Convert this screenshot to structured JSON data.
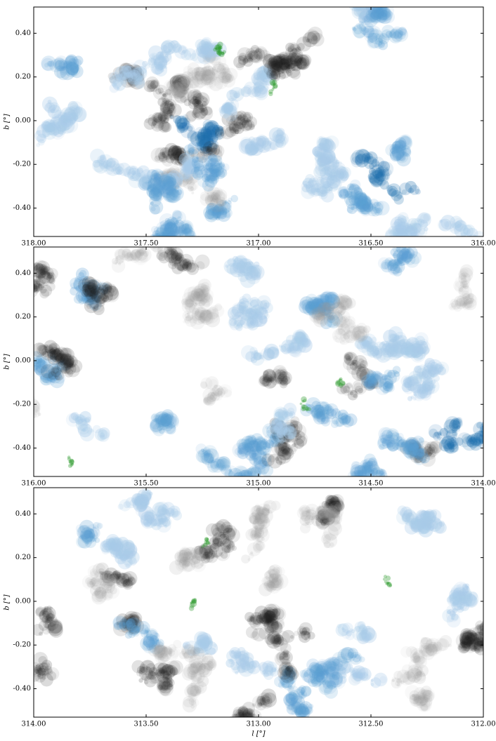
{
  "chart_data": [
    {
      "type": "map",
      "ylabel": "b [°]",
      "xlim": [
        318,
        316
      ],
      "ylim": [
        -0.53,
        0.52
      ],
      "xticks": [
        {
          "value": 318,
          "label": "318.00"
        },
        {
          "value": 317.5,
          "label": "317.50"
        },
        {
          "value": 317,
          "label": "317.00"
        },
        {
          "value": 316.5,
          "label": "316.50"
        },
        {
          "value": 316,
          "label": "316.00"
        }
      ],
      "yticks": [
        {
          "value": 0.4,
          "label": "0.40"
        },
        {
          "value": 0.2,
          "label": "0.20"
        },
        {
          "value": 0,
          "label": "0.00"
        },
        {
          "value": -0.2,
          "label": "-0.20"
        },
        {
          "value": -0.4,
          "label": "-0.40"
        }
      ]
    },
    {
      "type": "map",
      "ylabel": "b [°]",
      "xlim": [
        316,
        314
      ],
      "ylim": [
        -0.53,
        0.52
      ],
      "xticks": [
        {
          "value": 316,
          "label": "316.00"
        },
        {
          "value": 315.5,
          "label": "315.50"
        },
        {
          "value": 315,
          "label": "315.00"
        },
        {
          "value": 314.5,
          "label": "314.50"
        },
        {
          "value": 314,
          "label": "314.00"
        }
      ],
      "yticks": [
        {
          "value": 0.4,
          "label": "0.40"
        },
        {
          "value": 0.2,
          "label": "0.20"
        },
        {
          "value": 0,
          "label": "0.00"
        },
        {
          "value": -0.2,
          "label": "-0.20"
        },
        {
          "value": -0.4,
          "label": "-0.40"
        }
      ]
    },
    {
      "type": "map",
      "ylabel": "b [°]",
      "xlabel": "l [°]",
      "xlim": [
        314,
        312
      ],
      "ylim": [
        -0.53,
        0.52
      ],
      "xticks": [
        {
          "value": 314,
          "label": "314.00"
        },
        {
          "value": 313.5,
          "label": "313.50"
        },
        {
          "value": 313,
          "label": "313.00"
        },
        {
          "value": 312.5,
          "label": "312.50"
        },
        {
          "value": 312,
          "label": "312.00"
        }
      ],
      "yticks": [
        {
          "value": 0.4,
          "label": "0.40"
        },
        {
          "value": 0.2,
          "label": "0.20"
        },
        {
          "value": 0,
          "label": "0.00"
        },
        {
          "value": -0.2,
          "label": "-0.20"
        },
        {
          "value": -0.4,
          "label": "-0.40"
        }
      ]
    }
  ]
}
